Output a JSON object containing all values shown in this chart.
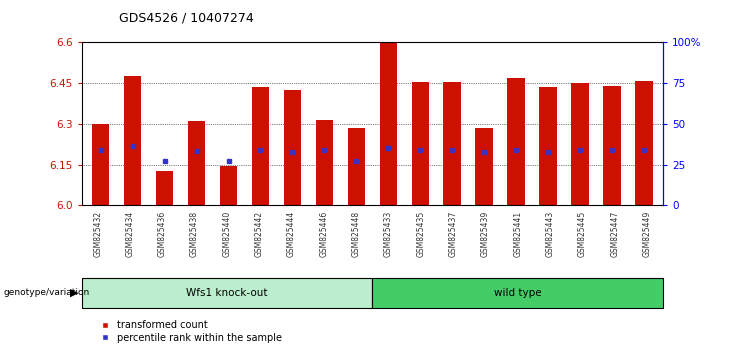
{
  "title": "GDS4526 / 10407274",
  "samples": [
    "GSM825432",
    "GSM825434",
    "GSM825436",
    "GSM825438",
    "GSM825440",
    "GSM825442",
    "GSM825444",
    "GSM825446",
    "GSM825448",
    "GSM825433",
    "GSM825435",
    "GSM825437",
    "GSM825439",
    "GSM825441",
    "GSM825443",
    "GSM825445",
    "GSM825447",
    "GSM825449"
  ],
  "bar_heights": [
    6.3,
    6.475,
    6.125,
    6.31,
    6.145,
    6.435,
    6.425,
    6.315,
    6.285,
    6.6,
    6.455,
    6.455,
    6.285,
    6.47,
    6.435,
    6.45,
    6.438,
    6.458
  ],
  "percentile_values": [
    6.205,
    6.22,
    6.165,
    6.2,
    6.165,
    6.205,
    6.195,
    6.205,
    6.165,
    6.21,
    6.205,
    6.205,
    6.195,
    6.205,
    6.195,
    6.205,
    6.205,
    6.205
  ],
  "groups": [
    {
      "label": "Wfs1 knock-out",
      "start": 0,
      "end": 9
    },
    {
      "label": "wild type",
      "start": 9,
      "end": 18
    }
  ],
  "group_colors": [
    "#BBEECC",
    "#44CC66"
  ],
  "ylim_left": [
    6.0,
    6.6
  ],
  "ylim_right": [
    0,
    100
  ],
  "yticks_left": [
    6.0,
    6.15,
    6.3,
    6.45,
    6.6
  ],
  "yticks_right": [
    0,
    25,
    50,
    75,
    100
  ],
  "bar_color": "#CC1100",
  "blue_color": "#3333CC",
  "legend_items": [
    "transformed count",
    "percentile rank within the sample"
  ]
}
